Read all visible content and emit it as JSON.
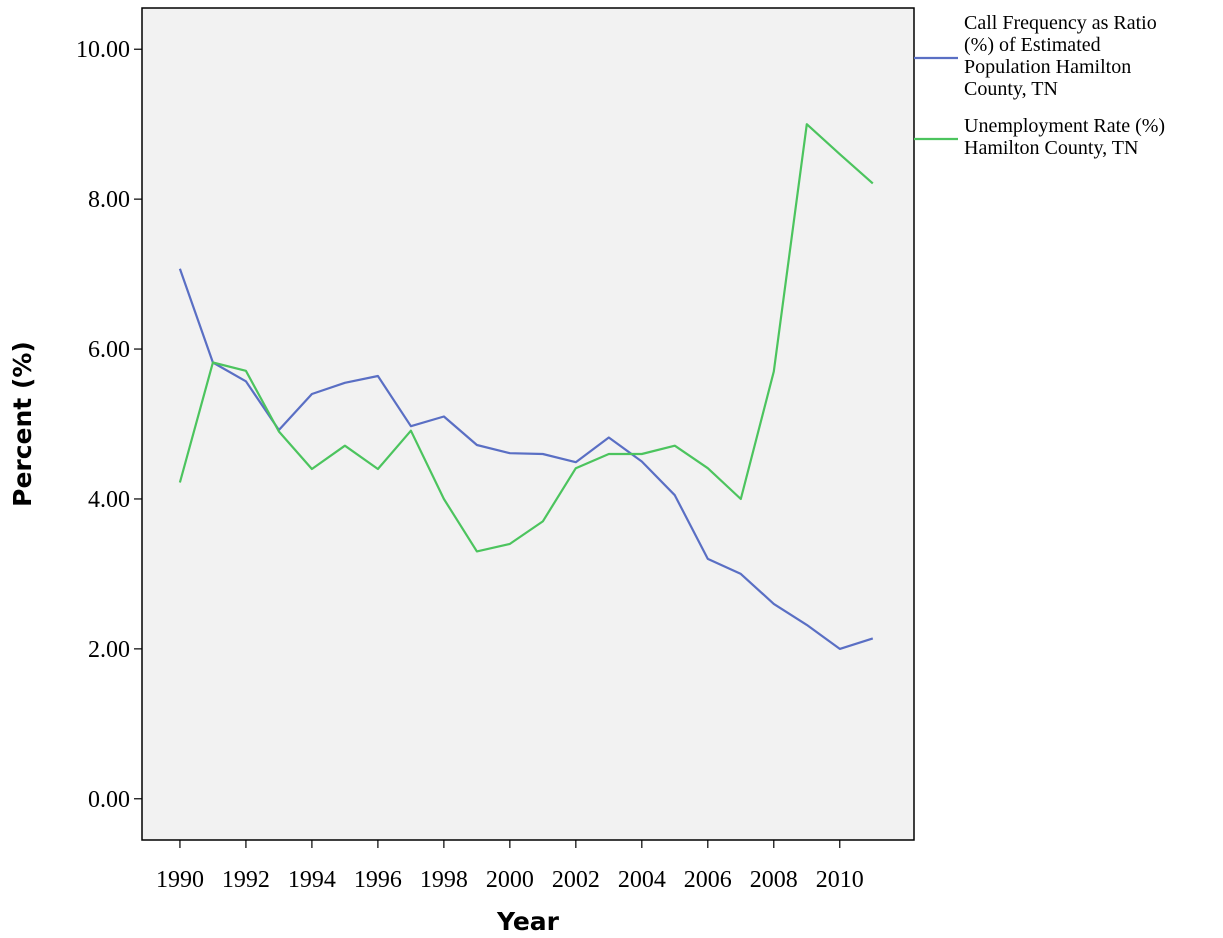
{
  "chart_data": {
    "type": "line",
    "title": "",
    "xlabel": "Year",
    "ylabel": "Percent (%)",
    "xlim": [
      1988.85,
      2012.25
    ],
    "ylim": [
      -0.55,
      10.55
    ],
    "x_ticks": [
      1990,
      1992,
      1994,
      1996,
      1998,
      2000,
      2002,
      2004,
      2006,
      2008,
      2010
    ],
    "x_tick_labels": [
      "1990",
      "1992",
      "1994",
      "1996",
      "1998",
      "2000",
      "2002",
      "2004",
      "2006",
      "2008",
      "2010"
    ],
    "y_ticks": [
      0,
      2,
      4,
      6,
      8,
      10
    ],
    "y_tick_labels": [
      "0.00",
      "2.00",
      "4.00",
      "6.00",
      "8.00",
      "10.00"
    ],
    "grid": false,
    "legend_position": "outside-top-right",
    "plot_background": "#f2f2f2",
    "x": [
      1990,
      1991,
      1992,
      1993,
      1994,
      1995,
      1996,
      1997,
      1998,
      1999,
      2000,
      2001,
      2002,
      2003,
      2004,
      2005,
      2006,
      2007,
      2008,
      2009,
      2010,
      2011
    ],
    "series": [
      {
        "name_lines": [
          "Call Frequency as Ratio",
          "(%) of Estimated",
          "Population Hamilton",
          "County, TN"
        ],
        "color": "#5a6fc4",
        "values": [
          7.07,
          5.82,
          5.57,
          4.92,
          5.4,
          5.55,
          5.64,
          4.97,
          5.1,
          4.72,
          4.61,
          4.6,
          4.49,
          4.82,
          4.5,
          4.05,
          3.2,
          3.0,
          2.6,
          2.32,
          2.0,
          2.14
        ]
      },
      {
        "name_lines": [
          "Unemployment Rate (%)",
          "Hamilton County, TN"
        ],
        "color": "#4cc45e",
        "values": [
          4.22,
          5.82,
          5.71,
          4.9,
          4.4,
          4.71,
          4.4,
          4.91,
          4.0,
          3.3,
          3.4,
          3.7,
          4.41,
          4.6,
          4.6,
          4.71,
          4.41,
          4.0,
          5.7,
          9.0,
          8.6,
          8.21
        ]
      }
    ]
  }
}
